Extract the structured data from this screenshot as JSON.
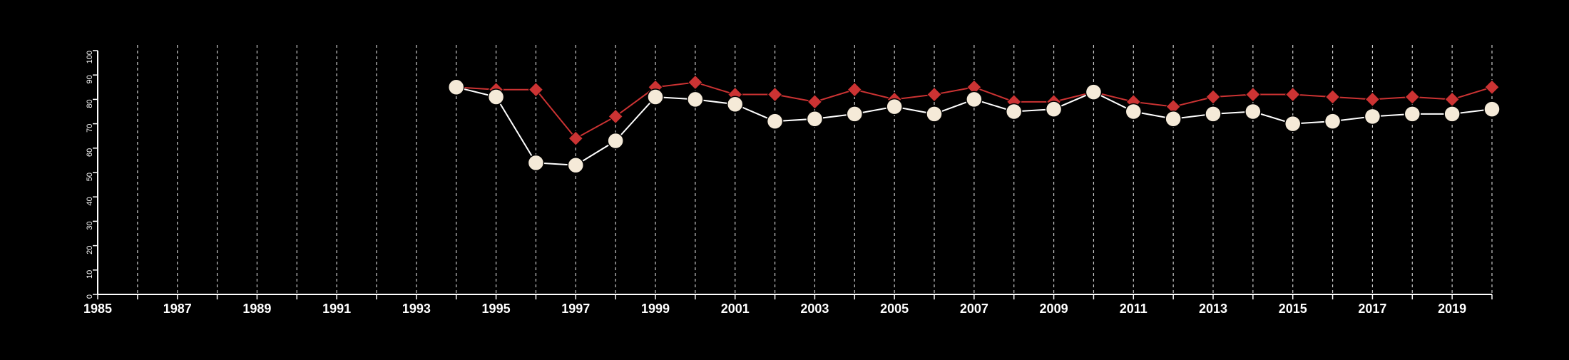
{
  "chart_data": {
    "type": "line",
    "title": "",
    "xlabel": "",
    "ylabel": "",
    "xlim": [
      1985,
      2020
    ],
    "ylim": [
      0,
      100
    ],
    "y_ticks": [
      0,
      10,
      20,
      30,
      40,
      50,
      60,
      70,
      80,
      90,
      100
    ],
    "x_ticks": [
      1985,
      1986,
      1987,
      1988,
      1989,
      1990,
      1991,
      1992,
      1993,
      1994,
      1995,
      1996,
      1997,
      1998,
      1999,
      2000,
      2001,
      2002,
      2003,
      2004,
      2005,
      2006,
      2007,
      2008,
      2009,
      2010,
      2011,
      2012,
      2013,
      2014,
      2015,
      2016,
      2017,
      2018,
      2019,
      2020
    ],
    "x_tick_labels": [
      "1985",
      "1987",
      "1989",
      "1991",
      "1993",
      "1995",
      "1997",
      "1999",
      "2001",
      "2003",
      "2005",
      "2007",
      "2009",
      "2011",
      "2013",
      "2015",
      "2017",
      "2019"
    ],
    "grid": {
      "vertical": true,
      "horizontal": false,
      "style": "dashed"
    },
    "x": [
      1994,
      1995,
      1996,
      1997,
      1998,
      1999,
      2000,
      2001,
      2002,
      2003,
      2004,
      2005,
      2006,
      2007,
      2008,
      2009,
      2010,
      2011,
      2012,
      2013,
      2014,
      2015,
      2016,
      2017,
      2018,
      2019,
      2020
    ],
    "series": [
      {
        "marker": "diamond",
        "color": "#cc3333",
        "values": [
          85,
          84,
          84,
          64,
          73,
          85,
          87,
          82,
          82,
          79,
          84,
          80,
          82,
          85,
          79,
          79,
          83,
          79,
          77,
          81,
          82,
          82,
          81,
          80,
          81,
          80,
          85
        ]
      },
      {
        "marker": "circle",
        "color": "#ffffff",
        "marker_fill": "#f5ead8",
        "values": [
          85,
          81,
          54,
          53,
          63,
          81,
          80,
          78,
          71,
          72,
          74,
          77,
          74,
          80,
          75,
          76,
          83,
          75,
          72,
          74,
          75,
          70,
          71,
          73,
          74,
          74,
          76
        ]
      }
    ]
  }
}
